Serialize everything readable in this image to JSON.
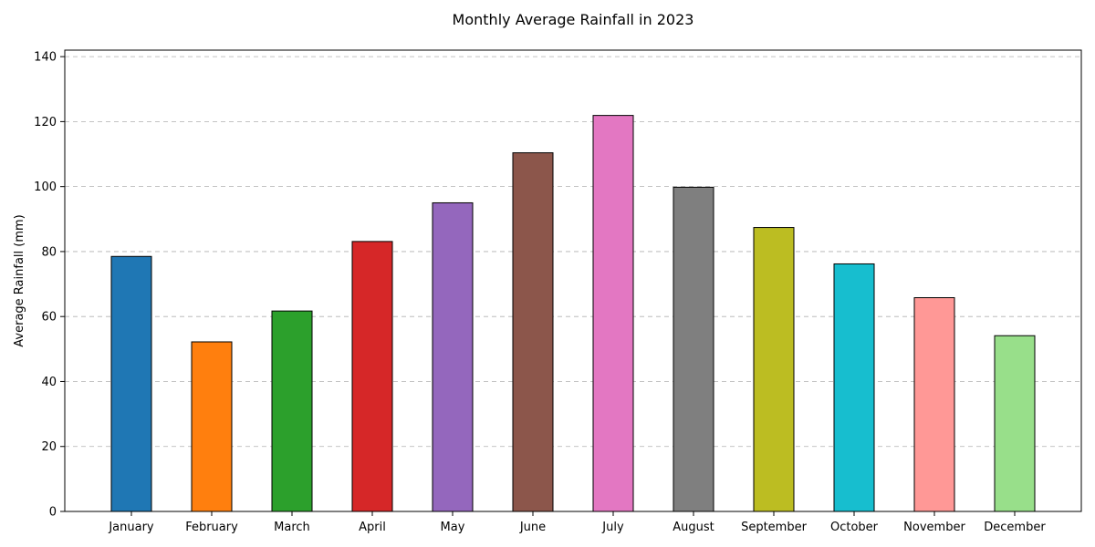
{
  "chart_data": {
    "type": "bar",
    "title": "Monthly Average Rainfall in 2023",
    "xlabel": "",
    "ylabel": "Average Rainfall (mm)",
    "ylim": [
      0,
      142
    ],
    "yticks": [
      0,
      20,
      40,
      60,
      80,
      100,
      120,
      140
    ],
    "grid": "y-dashed",
    "categories": [
      "January",
      "February",
      "March",
      "April",
      "May",
      "June",
      "July",
      "August",
      "September",
      "October",
      "November",
      "December"
    ],
    "values": [
      78.5,
      52.2,
      61.7,
      83.1,
      95.0,
      110.4,
      121.9,
      99.8,
      87.4,
      76.2,
      65.8,
      54.1
    ],
    "colors": [
      "#1f77b4",
      "#ff7f0e",
      "#2ca02c",
      "#d62728",
      "#9467bd",
      "#8c564b",
      "#e377c2",
      "#7f7f7f",
      "#bcbd22",
      "#17becf",
      "#ff9896",
      "#98df8a"
    ]
  }
}
